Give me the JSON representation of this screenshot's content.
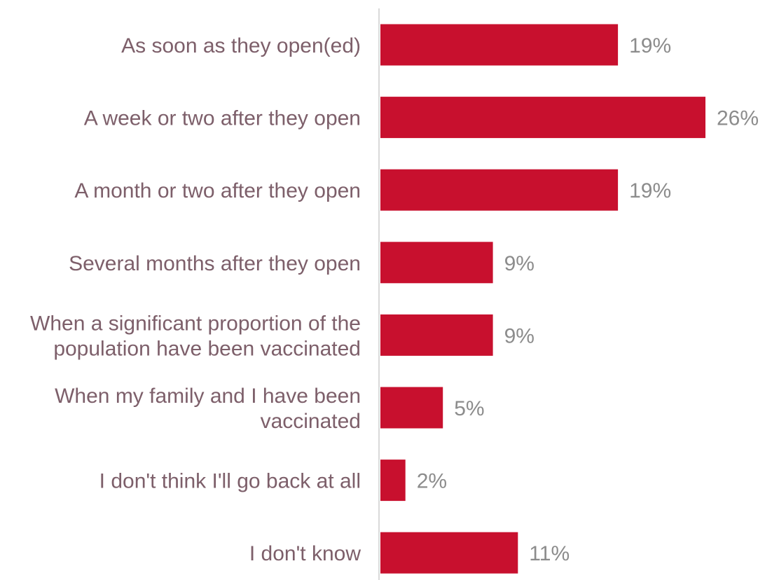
{
  "chart_data": {
    "type": "bar",
    "orientation": "horizontal",
    "categories": [
      [
        "As soon as they open(ed)"
      ],
      [
        "A week or two after they open"
      ],
      [
        "A month or two after they open"
      ],
      [
        "Several months after they open"
      ],
      [
        "When a significant proportion of the",
        "population have been vaccinated"
      ],
      [
        "When my family and I have been",
        "vaccinated"
      ],
      [
        "I don't think I'll go back at all"
      ],
      [
        "I don't know"
      ]
    ],
    "values": [
      19,
      26,
      19,
      9,
      9,
      5,
      2,
      11
    ],
    "value_labels": [
      "19%",
      "26%",
      "19%",
      "9%",
      "9%",
      "5%",
      "2%",
      "11%"
    ],
    "title": "",
    "xlabel": "",
    "ylabel": "",
    "xlim": [
      0,
      26
    ],
    "grid": false,
    "legend": "none",
    "colors": {
      "bar": "#c8102e",
      "category_text": "#7d5f6a",
      "value_text": "#8c8c8c",
      "axis": "#d9d9d9"
    }
  }
}
